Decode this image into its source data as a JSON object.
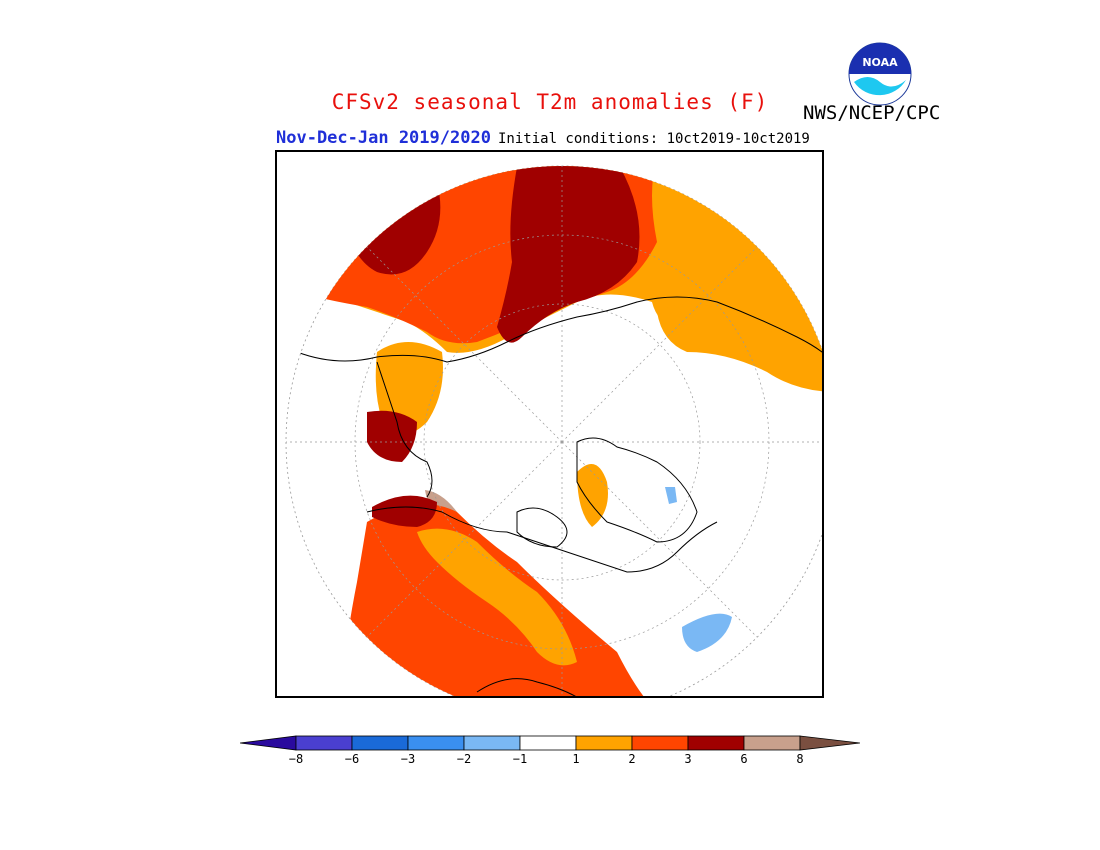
{
  "header": {
    "title": "CFSv2 seasonal T2m anomalies (F)",
    "period": "Nov-Dec-Jan 2019/2020",
    "initial_conditions": "Initial conditions: 10ct2019-10ct2019",
    "agency": "NWS/NCEP/CPC",
    "logo_text": "NOAA",
    "title_color": "#e8100c",
    "period_color": "#1f2fd8"
  },
  "legend": {
    "colors": [
      "#2a0a9e",
      "#4a3fd0",
      "#1a6ad8",
      "#3a8ff0",
      "#7ab8f4",
      "#ffffff",
      "#ffa300",
      "#ff4500",
      "#a00000",
      "#c8a08c",
      "#7a4f40"
    ],
    "ticks": [
      "−8",
      "−6",
      "−3",
      "−2",
      "−1",
      "1",
      "2",
      "3",
      "6",
      "8"
    ]
  },
  "map": {
    "projection": "north-polar-stereographic",
    "palette": {
      "w1": "#ffa300",
      "w2": "#ff4500",
      "w3": "#a00000",
      "w4": "#c8a08c",
      "w5": "#7a4f40",
      "c1": "#7ab8f4"
    }
  }
}
